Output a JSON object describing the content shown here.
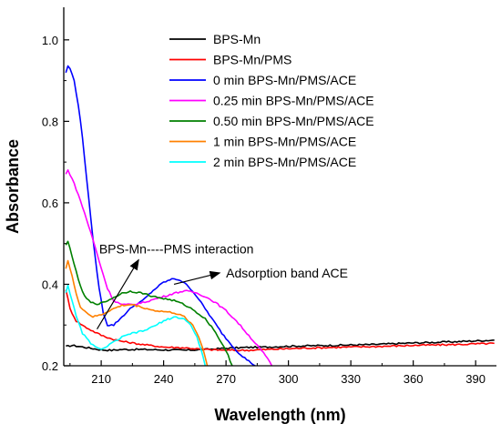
{
  "chart_data": {
    "type": "line",
    "xlabel": "Wavelength (nm)",
    "ylabel": "Absorbance",
    "xlim": [
      192,
      400
    ],
    "ylim": [
      0.2,
      1.08
    ],
    "x_ticks": [
      210,
      240,
      270,
      300,
      330,
      360,
      390
    ],
    "x_tick_labels": [
      "210",
      "240",
      "270",
      "300",
      "330",
      "360",
      "390"
    ],
    "y_ticks": [
      0.2,
      0.4,
      0.6,
      0.8,
      1.0
    ],
    "y_tick_labels": [
      "0.2",
      "0.4",
      "0.6",
      "0.8",
      "1.0"
    ],
    "grid": false,
    "legend_position": "top-right",
    "series": [
      {
        "name": "BPS-Mn",
        "color": "#000000",
        "points": [
          [
            193,
            0.247
          ],
          [
            196,
            0.25
          ],
          [
            200,
            0.247
          ],
          [
            205,
            0.243
          ],
          [
            210,
            0.239
          ],
          [
            215,
            0.238
          ],
          [
            220,
            0.24
          ],
          [
            230,
            0.24
          ],
          [
            240,
            0.239
          ],
          [
            250,
            0.238
          ],
          [
            260,
            0.24
          ],
          [
            270,
            0.243
          ],
          [
            280,
            0.245
          ],
          [
            290,
            0.246
          ],
          [
            300,
            0.248
          ],
          [
            320,
            0.25
          ],
          [
            340,
            0.252
          ],
          [
            360,
            0.256
          ],
          [
            380,
            0.259
          ],
          [
            399,
            0.263
          ]
        ]
      },
      {
        "name": "BPS-Mn/PMS",
        "color": "#ff0000",
        "points": [
          [
            193,
            0.388
          ],
          [
            195,
            0.34
          ],
          [
            198,
            0.31
          ],
          [
            202,
            0.296
          ],
          [
            206,
            0.285
          ],
          [
            210,
            0.275
          ],
          [
            215,
            0.266
          ],
          [
            220,
            0.26
          ],
          [
            230,
            0.252
          ],
          [
            240,
            0.246
          ],
          [
            250,
            0.244
          ],
          [
            260,
            0.24
          ],
          [
            270,
            0.238
          ],
          [
            280,
            0.238
          ],
          [
            290,
            0.24
          ],
          [
            300,
            0.242
          ],
          [
            320,
            0.245
          ],
          [
            340,
            0.247
          ],
          [
            360,
            0.25
          ],
          [
            380,
            0.252
          ],
          [
            399,
            0.255
          ]
        ]
      },
      {
        "name": "0 min BPS-Mn/PMS/ACE",
        "color": "#0000ff",
        "points": [
          [
            193,
            0.92
          ],
          [
            194,
            0.935
          ],
          [
            195,
            0.93
          ],
          [
            197,
            0.9
          ],
          [
            199,
            0.84
          ],
          [
            201,
            0.76
          ],
          [
            203,
            0.66
          ],
          [
            205,
            0.56
          ],
          [
            207,
            0.47
          ],
          [
            209,
            0.39
          ],
          [
            211,
            0.33
          ],
          [
            213,
            0.3
          ],
          [
            216,
            0.3
          ],
          [
            220,
            0.32
          ],
          [
            225,
            0.345
          ],
          [
            230,
            0.36
          ],
          [
            235,
            0.385
          ],
          [
            240,
            0.405
          ],
          [
            245,
            0.414
          ],
          [
            248,
            0.41
          ],
          [
            252,
            0.395
          ],
          [
            256,
            0.37
          ],
          [
            260,
            0.34
          ],
          [
            264,
            0.31
          ],
          [
            268,
            0.28
          ],
          [
            272,
            0.255
          ],
          [
            276,
            0.232
          ],
          [
            280,
            0.215
          ],
          [
            284,
            0.2
          ]
        ]
      },
      {
        "name": "0.25 min BPS-Mn/PMS/ACE",
        "color": "#ff00ff",
        "points": [
          [
            193,
            0.67
          ],
          [
            194,
            0.68
          ],
          [
            196,
            0.66
          ],
          [
            199,
            0.62
          ],
          [
            202,
            0.575
          ],
          [
            206,
            0.51
          ],
          [
            210,
            0.44
          ],
          [
            213,
            0.39
          ],
          [
            216,
            0.36
          ],
          [
            220,
            0.35
          ],
          [
            225,
            0.35
          ],
          [
            230,
            0.355
          ],
          [
            240,
            0.37
          ],
          [
            245,
            0.378
          ],
          [
            250,
            0.384
          ],
          [
            255,
            0.38
          ],
          [
            260,
            0.37
          ],
          [
            265,
            0.355
          ],
          [
            270,
            0.335
          ],
          [
            275,
            0.31
          ],
          [
            280,
            0.28
          ],
          [
            285,
            0.25
          ],
          [
            289,
            0.225
          ],
          [
            292,
            0.2
          ]
        ]
      },
      {
        "name": "0.50 min BPS-Mn/PMS/ACE",
        "color": "#008000",
        "points": [
          [
            193,
            0.495
          ],
          [
            194,
            0.505
          ],
          [
            196,
            0.47
          ],
          [
            199,
            0.41
          ],
          [
            202,
            0.37
          ],
          [
            205,
            0.355
          ],
          [
            208,
            0.352
          ],
          [
            211,
            0.355
          ],
          [
            215,
            0.365
          ],
          [
            220,
            0.378
          ],
          [
            224,
            0.383
          ],
          [
            230,
            0.378
          ],
          [
            235,
            0.37
          ],
          [
            240,
            0.365
          ],
          [
            245,
            0.36
          ],
          [
            250,
            0.35
          ],
          [
            255,
            0.335
          ],
          [
            260,
            0.315
          ],
          [
            264,
            0.29
          ],
          [
            268,
            0.255
          ],
          [
            271,
            0.225
          ],
          [
            273,
            0.2
          ]
        ]
      },
      {
        "name": "1 min BPS-Mn/PMS/ACE",
        "color": "#ff8000",
        "points": [
          [
            193,
            0.44
          ],
          [
            194,
            0.458
          ],
          [
            196,
            0.42
          ],
          [
            198,
            0.375
          ],
          [
            200,
            0.345
          ],
          [
            203,
            0.33
          ],
          [
            206,
            0.32
          ],
          [
            210,
            0.325
          ],
          [
            215,
            0.338
          ],
          [
            220,
            0.348
          ],
          [
            225,
            0.35
          ],
          [
            230,
            0.343
          ],
          [
            235,
            0.336
          ],
          [
            240,
            0.333
          ],
          [
            245,
            0.33
          ],
          [
            250,
            0.32
          ],
          [
            254,
            0.3
          ],
          [
            257,
            0.27
          ],
          [
            259,
            0.24
          ],
          [
            261,
            0.2
          ]
        ]
      },
      {
        "name": "2 min BPS-Mn/PMS/ACE",
        "color": "#00ffff",
        "points": [
          [
            193,
            0.38
          ],
          [
            194,
            0.398
          ],
          [
            196,
            0.36
          ],
          [
            198,
            0.32
          ],
          [
            201,
            0.28
          ],
          [
            205,
            0.255
          ],
          [
            208,
            0.243
          ],
          [
            211,
            0.242
          ],
          [
            215,
            0.255
          ],
          [
            220,
            0.27
          ],
          [
            225,
            0.28
          ],
          [
            230,
            0.285
          ],
          [
            235,
            0.296
          ],
          [
            240,
            0.31
          ],
          [
            245,
            0.32
          ],
          [
            250,
            0.315
          ],
          [
            253,
            0.3
          ],
          [
            256,
            0.27
          ],
          [
            258,
            0.24
          ],
          [
            260,
            0.2
          ]
        ]
      }
    ],
    "annotations": [
      {
        "text": "BPS-Mn----PMS interaction",
        "arrow_from": [
          208,
          0.29
        ],
        "arrow_to": [
          228,
          0.46
        ],
        "label_at": [
          209,
          0.487
        ]
      },
      {
        "text": "Adsorption band ACE",
        "arrow_from": [
          245,
          0.4
        ],
        "arrow_to": [
          267,
          0.428
        ],
        "label_at": [
          270,
          0.428
        ]
      }
    ]
  }
}
